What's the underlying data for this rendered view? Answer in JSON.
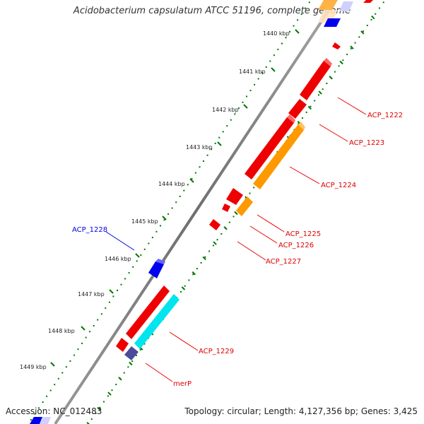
{
  "title": "Acidobacterium capsulatum ATCC 51196, complete genome",
  "footer": {
    "accession": "Accession: NC_012483",
    "summary": "Topology: circular; Length: 4,127,356 bp; Genes: 3,425"
  },
  "colors": {
    "forward_gene": "#ee0000",
    "reverse_gene": "#0000ee",
    "orange_gene": "#ff9900",
    "cyan_gene": "#00e5ee",
    "purple_gene": "#4b4b9a",
    "backbone": "#808080",
    "tick": "#007700",
    "label_red": "#dd0000",
    "label_blue": "#0000dd"
  },
  "ticks": [
    "1440 kbp",
    "1441 kbp",
    "1442 kbp",
    "1443 kbp",
    "1444 kbp",
    "1445 kbp",
    "1446 kbp",
    "1447 kbp",
    "1448 kbp",
    "1449 kbp"
  ],
  "gene_labels": [
    {
      "name": "ACP_1222",
      "color": "red"
    },
    {
      "name": "ACP_1223",
      "color": "red"
    },
    {
      "name": "ACP_1224",
      "color": "red"
    },
    {
      "name": "ACP_1225",
      "color": "red"
    },
    {
      "name": "ACP_1226",
      "color": "red"
    },
    {
      "name": "ACP_1227",
      "color": "red"
    },
    {
      "name": "ACP_1228",
      "color": "blue"
    },
    {
      "name": "ACP_1229",
      "color": "red"
    },
    {
      "name": "merP",
      "color": "red"
    }
  ]
}
